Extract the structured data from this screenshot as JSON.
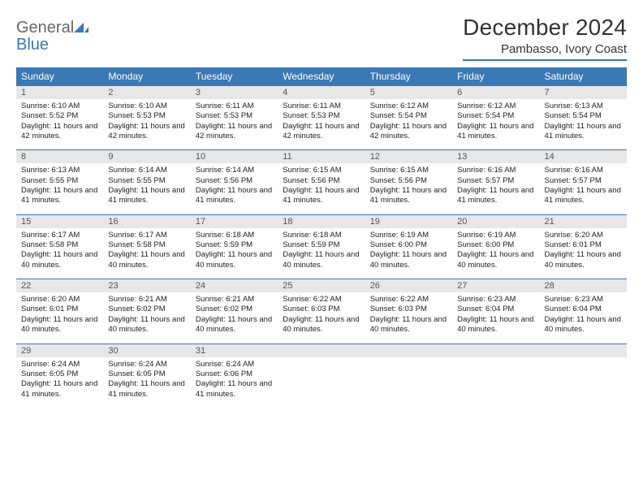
{
  "logo": {
    "word1": "General",
    "word2": "Blue"
  },
  "header": {
    "title": "December 2024",
    "location": "Pambasso, Ivory Coast"
  },
  "colors": {
    "accent": "#3a78b6",
    "header_text": "#ffffff",
    "daynum_bg": "#e7e7e7",
    "daynum_text": "#555555",
    "body_text": "#222222",
    "title_text": "#333333",
    "logo_gray": "#666666"
  },
  "dayNames": [
    "Sunday",
    "Monday",
    "Tuesday",
    "Wednesday",
    "Thursday",
    "Friday",
    "Saturday"
  ],
  "weeks": [
    [
      {
        "n": "1",
        "sr": "6:10 AM",
        "ss": "5:52 PM",
        "dl": "11 hours and 42 minutes."
      },
      {
        "n": "2",
        "sr": "6:10 AM",
        "ss": "5:53 PM",
        "dl": "11 hours and 42 minutes."
      },
      {
        "n": "3",
        "sr": "6:11 AM",
        "ss": "5:53 PM",
        "dl": "11 hours and 42 minutes."
      },
      {
        "n": "4",
        "sr": "6:11 AM",
        "ss": "5:53 PM",
        "dl": "11 hours and 42 minutes."
      },
      {
        "n": "5",
        "sr": "6:12 AM",
        "ss": "5:54 PM",
        "dl": "11 hours and 42 minutes."
      },
      {
        "n": "6",
        "sr": "6:12 AM",
        "ss": "5:54 PM",
        "dl": "11 hours and 41 minutes."
      },
      {
        "n": "7",
        "sr": "6:13 AM",
        "ss": "5:54 PM",
        "dl": "11 hours and 41 minutes."
      }
    ],
    [
      {
        "n": "8",
        "sr": "6:13 AM",
        "ss": "5:55 PM",
        "dl": "11 hours and 41 minutes."
      },
      {
        "n": "9",
        "sr": "6:14 AM",
        "ss": "5:55 PM",
        "dl": "11 hours and 41 minutes."
      },
      {
        "n": "10",
        "sr": "6:14 AM",
        "ss": "5:56 PM",
        "dl": "11 hours and 41 minutes."
      },
      {
        "n": "11",
        "sr": "6:15 AM",
        "ss": "5:56 PM",
        "dl": "11 hours and 41 minutes."
      },
      {
        "n": "12",
        "sr": "6:15 AM",
        "ss": "5:56 PM",
        "dl": "11 hours and 41 minutes."
      },
      {
        "n": "13",
        "sr": "6:16 AM",
        "ss": "5:57 PM",
        "dl": "11 hours and 41 minutes."
      },
      {
        "n": "14",
        "sr": "6:16 AM",
        "ss": "5:57 PM",
        "dl": "11 hours and 41 minutes."
      }
    ],
    [
      {
        "n": "15",
        "sr": "6:17 AM",
        "ss": "5:58 PM",
        "dl": "11 hours and 40 minutes."
      },
      {
        "n": "16",
        "sr": "6:17 AM",
        "ss": "5:58 PM",
        "dl": "11 hours and 40 minutes."
      },
      {
        "n": "17",
        "sr": "6:18 AM",
        "ss": "5:59 PM",
        "dl": "11 hours and 40 minutes."
      },
      {
        "n": "18",
        "sr": "6:18 AM",
        "ss": "5:59 PM",
        "dl": "11 hours and 40 minutes."
      },
      {
        "n": "19",
        "sr": "6:19 AM",
        "ss": "6:00 PM",
        "dl": "11 hours and 40 minutes."
      },
      {
        "n": "20",
        "sr": "6:19 AM",
        "ss": "6:00 PM",
        "dl": "11 hours and 40 minutes."
      },
      {
        "n": "21",
        "sr": "6:20 AM",
        "ss": "6:01 PM",
        "dl": "11 hours and 40 minutes."
      }
    ],
    [
      {
        "n": "22",
        "sr": "6:20 AM",
        "ss": "6:01 PM",
        "dl": "11 hours and 40 minutes."
      },
      {
        "n": "23",
        "sr": "6:21 AM",
        "ss": "6:02 PM",
        "dl": "11 hours and 40 minutes."
      },
      {
        "n": "24",
        "sr": "6:21 AM",
        "ss": "6:02 PM",
        "dl": "11 hours and 40 minutes."
      },
      {
        "n": "25",
        "sr": "6:22 AM",
        "ss": "6:03 PM",
        "dl": "11 hours and 40 minutes."
      },
      {
        "n": "26",
        "sr": "6:22 AM",
        "ss": "6:03 PM",
        "dl": "11 hours and 40 minutes."
      },
      {
        "n": "27",
        "sr": "6:23 AM",
        "ss": "6:04 PM",
        "dl": "11 hours and 40 minutes."
      },
      {
        "n": "28",
        "sr": "6:23 AM",
        "ss": "6:04 PM",
        "dl": "11 hours and 40 minutes."
      }
    ],
    [
      {
        "n": "29",
        "sr": "6:24 AM",
        "ss": "6:05 PM",
        "dl": "11 hours and 41 minutes."
      },
      {
        "n": "30",
        "sr": "6:24 AM",
        "ss": "6:05 PM",
        "dl": "11 hours and 41 minutes."
      },
      {
        "n": "31",
        "sr": "6:24 AM",
        "ss": "6:06 PM",
        "dl": "11 hours and 41 minutes."
      },
      null,
      null,
      null,
      null
    ]
  ],
  "labels": {
    "sunrise": "Sunrise:",
    "sunset": "Sunset:",
    "daylight": "Daylight:"
  }
}
